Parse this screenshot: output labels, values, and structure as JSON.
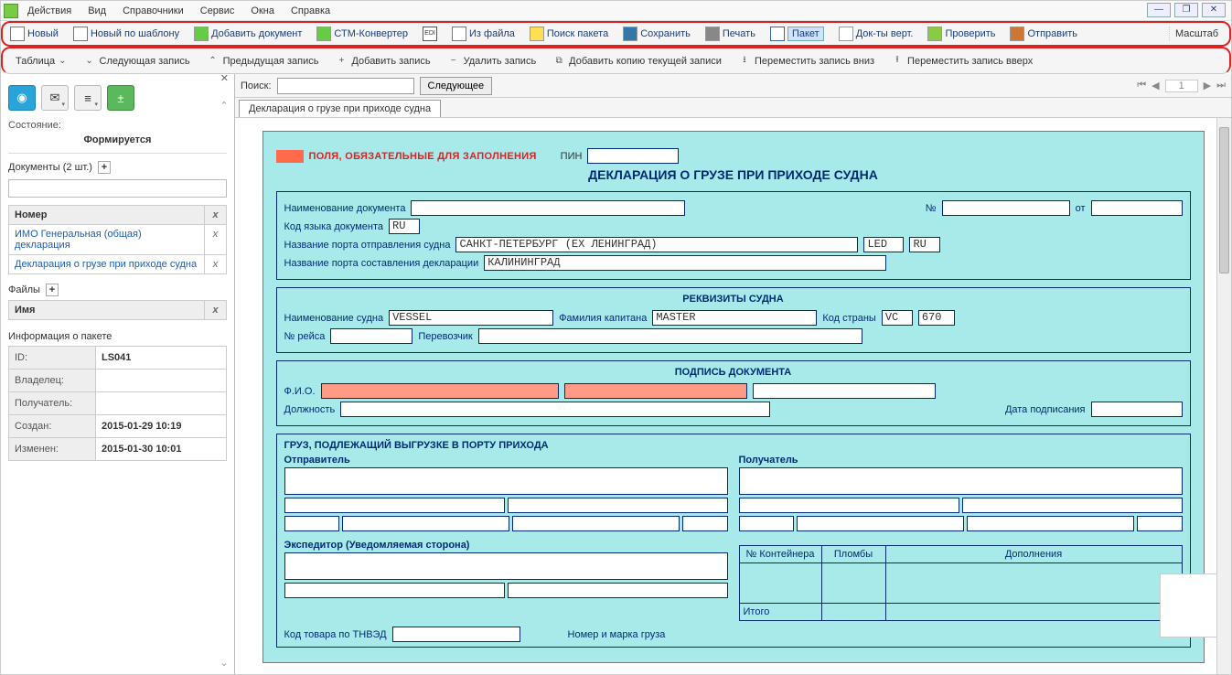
{
  "menu": {
    "actions": "Действия",
    "view": "Вид",
    "refs": "Справочники",
    "service": "Сервис",
    "windows": "Окна",
    "help": "Справка"
  },
  "toolbar1": {
    "new": "Новый",
    "new_tpl": "Новый по шаблону",
    "add_doc": "Добавить документ",
    "stm": "СТМ-Конвертер",
    "edi": "EDI",
    "from_file": "Из файла",
    "find_pkg": "Поиск пакета",
    "save": "Сохранить",
    "print": "Печать",
    "packet": "Пакет",
    "docs_vert": "Док-ты верт.",
    "check": "Проверить",
    "send": "Отправить",
    "zoom": "Масштаб"
  },
  "toolbar2": {
    "table": "Таблица",
    "next": "Следующая запись",
    "prev": "Предыдущая запись",
    "add": "Добавить запись",
    "del": "Удалить запись",
    "copy": "Добавить копию текущей записи",
    "move_down": "Переместить запись вниз",
    "move_up": "Переместить запись вверх"
  },
  "search": {
    "label": "Поиск:",
    "value": "",
    "next_btn": "Следующее",
    "page": "1"
  },
  "sidebar": {
    "state_label": "Состояние:",
    "state_value": "Формируется",
    "docs_header": "Документы (2 шт.)",
    "col_number": "Номер",
    "docs": [
      {
        "title": "ИМО Генеральная (общая) декларация"
      },
      {
        "title": "Декларация о грузе при приходе судна"
      }
    ],
    "files_header": "Файлы",
    "col_name": "Имя",
    "info_header": "Информация о пакете",
    "info": [
      {
        "label": "ID:",
        "value": "LS041"
      },
      {
        "label": "Владелец:",
        "value": ""
      },
      {
        "label": "Получатель:",
        "value": ""
      },
      {
        "label": "Создан:",
        "value": "2015-01-29 10:19"
      },
      {
        "label": "Изменен:",
        "value": "2015-01-30 10:01"
      }
    ]
  },
  "tab": "Декларация о грузе при приходе судна",
  "form": {
    "mandatory": "ПОЛЯ, ОБЯЗАТЕЛЬНЫЕ ДЛЯ ЗАПОЛНЕНИЯ",
    "pin": "ПИН",
    "title": "ДЕКЛАРАЦИЯ О ГРУЗЕ ПРИ ПРИХОДЕ СУДНА",
    "doc_name_l": "Наименование документа",
    "num_l": "№",
    "from_l": "от",
    "lang_l": "Код языка документа",
    "lang_v": "RU",
    "dep_port_l": "Название порта отправления судна",
    "dep_port_v": "САНКТ-ПЕТЕРБУРГ (EX ЛЕНИНГРАД)",
    "dep_code": "LED",
    "dep_ctry": "RU",
    "decl_port_l": "Название порта составления декларации",
    "decl_port_v": "КАЛИНИНГРАД",
    "ship_hdr": "РЕКВИЗИТЫ СУДНА",
    "ship_name_l": "Наименование судна",
    "ship_name_v": "VESSEL",
    "captain_l": "Фамилия капитана",
    "captain_v": "MASTER",
    "country_l": "Код страны",
    "country_v": "VC",
    "country_n": "670",
    "voyage_l": "№ рейса",
    "carrier_l": "Перевозчик",
    "sign_hdr": "ПОДПИСЬ ДОКУМЕНТА",
    "fio_l": "Ф.И.О.",
    "pos_l": "Должность",
    "date_l": "Дата подписания",
    "cargo_hdr": "ГРУЗ, ПОДЛЕЖАЩИЙ ВЫГРУЗКЕ В ПОРТУ ПРИХОДА",
    "sender_l": "Отправитель",
    "receiver_l": "Получатель",
    "forwarder_l": "Экспедитор (Уведомляемая сторона)",
    "container_l": "№ Контейнера",
    "seals_l": "Пломбы",
    "addl_l": "Дополнения",
    "total_l": "Итого",
    "tnved_l": "Код товара по ТНВЭД",
    "mark_l": "Номер и марка груза"
  },
  "colors": {
    "page_bg": "#a8eaea",
    "border": "#022b75",
    "req": "#ff9a86"
  }
}
